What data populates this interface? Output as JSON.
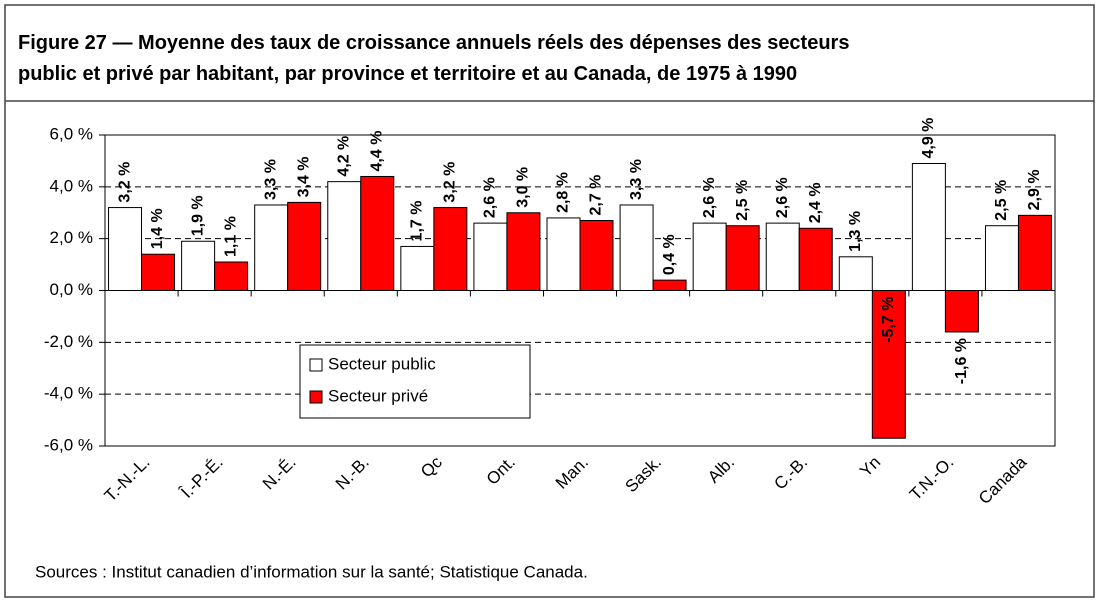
{
  "chart_data": {
    "type": "bar",
    "title": "Figure 27 — Moyenne des taux de croissance annuels réels des dépenses des secteurs\npublic et privé par habitant, par province et territoire et au Canada, de 1975 à 1990",
    "categories": [
      "T.-N.-L.",
      "Î.-P.-É.",
      "N.-É.",
      "N.-B.",
      "Qc",
      "Ont.",
      "Man.",
      "Sask.",
      "Alb.",
      "C.-B.",
      "Yn",
      "T.N.-O.",
      "Canada"
    ],
    "series": [
      {
        "name": "Secteur public",
        "color": "#ffffff",
        "values": [
          3.2,
          1.9,
          3.3,
          4.2,
          1.7,
          2.6,
          2.8,
          3.3,
          2.6,
          2.6,
          1.3,
          4.9,
          2.5
        ],
        "value_labels": [
          "3,2 %",
          "1,9 %",
          "3,3 %",
          "4,2 %",
          "1,7 %",
          "2,6 %",
          "2,8 %",
          "3,3 %",
          "2,6 %",
          "2,6 %",
          "1,3 %",
          "4,9 %",
          "2,5 %"
        ]
      },
      {
        "name": "Secteur privé",
        "color": "#ff0000",
        "values": [
          1.4,
          1.1,
          3.4,
          4.4,
          3.2,
          3.0,
          2.7,
          0.4,
          2.5,
          2.4,
          -5.7,
          -1.6,
          2.9
        ],
        "value_labels": [
          "1,4 %",
          "1,1 %",
          "3,4 %",
          "4,4 %",
          "3,2 %",
          "3,0 %",
          "2,7 %",
          "0,4 %",
          "2,5 %",
          "2,4 %",
          "-5,7 %",
          "-1,6 %",
          "2,9 %"
        ]
      }
    ],
    "ylim": [
      -6,
      6
    ],
    "yticks": [
      {
        "value": -6,
        "label": "-6,0 %"
      },
      {
        "value": -4,
        "label": "-4,0 %"
      },
      {
        "value": -2,
        "label": "-2,0 %"
      },
      {
        "value": 0,
        "label": "0,0 %"
      },
      {
        "value": 2,
        "label": "2,0 %"
      },
      {
        "value": 4,
        "label": "4,0 %"
      },
      {
        "value": 6,
        "label": "6,0 %"
      }
    ],
    "grid": true,
    "legend_position": "center",
    "source": "Sources : Institut canadien d’information sur la santé; Statistique Canada."
  }
}
